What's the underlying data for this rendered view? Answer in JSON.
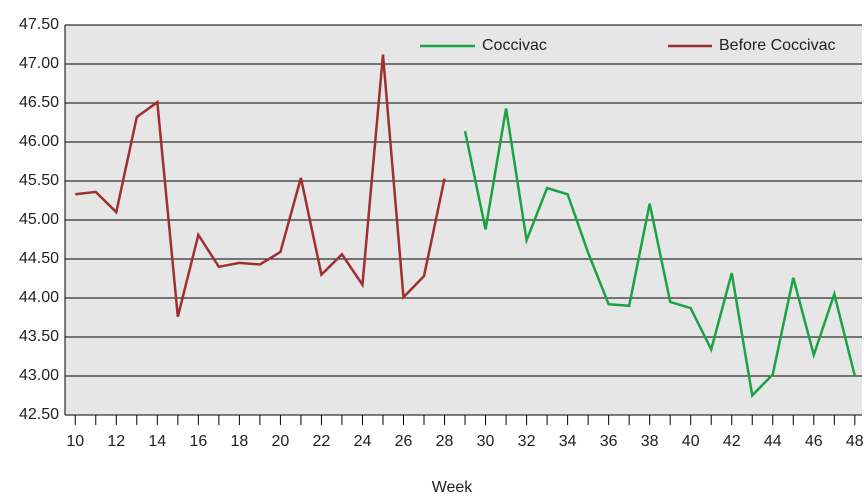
{
  "chart_data": {
    "type": "line",
    "x_label": "Week",
    "x": [
      10,
      11,
      12,
      13,
      14,
      15,
      16,
      17,
      18,
      19,
      20,
      21,
      22,
      23,
      24,
      25,
      26,
      27,
      28,
      29,
      30,
      31,
      32,
      33,
      34,
      35,
      36,
      37,
      38,
      39,
      40,
      41,
      42,
      43,
      44,
      45,
      46,
      47,
      48
    ],
    "series": [
      {
        "name": "Coccivac",
        "color": "#1aa343",
        "values": [
          null,
          null,
          null,
          null,
          null,
          null,
          null,
          null,
          null,
          null,
          null,
          null,
          null,
          null,
          null,
          null,
          null,
          null,
          null,
          46.14,
          44.88,
          46.43,
          44.74,
          45.41,
          45.33,
          44.58,
          43.92,
          43.9,
          45.21,
          43.95,
          43.87,
          43.34,
          44.32,
          42.75,
          43.02,
          44.26,
          43.27,
          44.05,
          43.0
        ]
      },
      {
        "name": "Before Coccivac",
        "color": "#a0302e",
        "values": [
          45.33,
          45.36,
          45.1,
          46.32,
          46.51,
          43.76,
          44.81,
          44.4,
          44.45,
          44.43,
          44.59,
          45.54,
          44.3,
          44.56,
          44.17,
          47.12,
          44.01,
          44.28,
          45.53,
          null,
          null,
          null,
          null,
          null,
          null,
          null,
          null,
          null,
          null,
          null,
          null,
          null,
          null,
          null,
          null,
          null,
          null,
          null,
          null
        ]
      }
    ],
    "xlim": [
      9.5,
      48.35
    ],
    "xticks": [
      10,
      12,
      14,
      16,
      18,
      20,
      22,
      24,
      26,
      28,
      30,
      32,
      34,
      36,
      38,
      40,
      42,
      44,
      46,
      48
    ],
    "xminorticks": [
      11,
      13,
      15,
      17,
      19,
      21,
      23,
      25,
      27,
      29,
      31,
      33,
      35,
      37,
      39,
      41,
      43,
      45,
      47
    ],
    "ylim": [
      42.5,
      47.5
    ],
    "yticks": [
      {
        "value": 42.5,
        "label": "42.50"
      },
      {
        "value": 43,
        "label": "43.00"
      },
      {
        "value": 43.5,
        "label": "43.50"
      },
      {
        "value": 44,
        "label": "44.00"
      },
      {
        "value": 44.5,
        "label": "44.50"
      },
      {
        "value": 45,
        "label": "45.00"
      },
      {
        "value": 45.5,
        "label": "45.50"
      },
      {
        "value": 46,
        "label": "46.00"
      },
      {
        "value": 46.5,
        "label": "46.50"
      },
      {
        "value": 47,
        "label": "47.00"
      },
      {
        "value": 47.5,
        "label": "47.50"
      }
    ],
    "grid": true,
    "legend": "top"
  }
}
